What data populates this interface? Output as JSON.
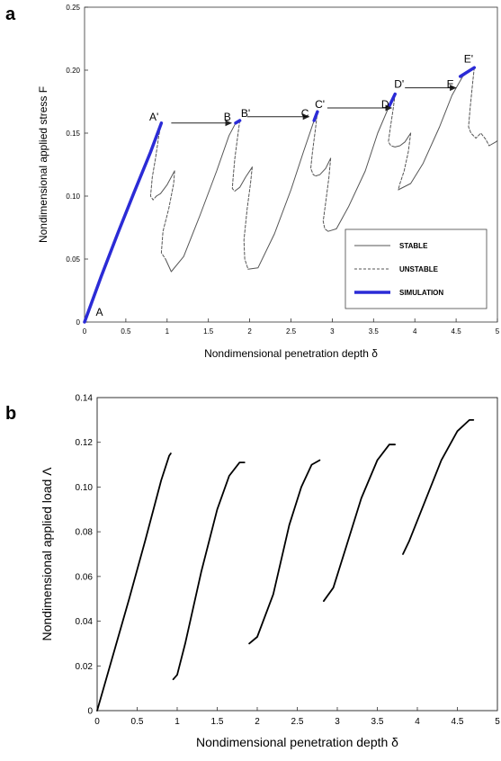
{
  "chart_data": [
    {
      "panel": "a",
      "type": "line",
      "xlabel": "Nondimensional penetration depth δ",
      "ylabel": "Nondimensional applied stress F",
      "xlim": [
        0,
        5
      ],
      "ylim": [
        0,
        0.25
      ],
      "xticks": [
        "0",
        "0.5",
        "1",
        "1.5",
        "2",
        "2.5",
        "3",
        "3.5",
        "4",
        "4.5",
        "5"
      ],
      "yticks": [
        "0",
        "0.05",
        "0.10",
        "0.15",
        "0.20",
        "0.25"
      ],
      "grid": false,
      "legend": {
        "position": "bottom-right",
        "entries": [
          {
            "label": "STABLE",
            "style": "solid",
            "color": "#555555"
          },
          {
            "label": "UNSTABLE",
            "style": "dashed",
            "color": "#555555"
          },
          {
            "label": "SIMULATION",
            "style": "thick",
            "color": "#2b2bd6"
          }
        ]
      },
      "series": [
        {
          "name": "STABLE",
          "style": "stable",
          "segments": [
            [
              [
                0.0,
                0.0
              ],
              [
                0.2,
                0.036
              ],
              [
                0.4,
                0.07
              ],
              [
                0.6,
                0.103
              ],
              [
                0.8,
                0.135
              ],
              [
                0.93,
                0.158
              ]
            ],
            [
              [
                1.09,
                0.12
              ],
              [
                1.0,
                0.109
              ],
              [
                0.92,
                0.102
              ],
              [
                0.87,
                0.1
              ]
            ],
            [
              [
                0.98,
                0.05
              ],
              [
                1.05,
                0.04
              ],
              [
                1.2,
                0.052
              ],
              [
                1.4,
                0.085
              ],
              [
                1.6,
                0.12
              ],
              [
                1.75,
                0.148
              ],
              [
                1.83,
                0.158
              ],
              [
                1.88,
                0.16
              ]
            ],
            [
              [
                2.03,
                0.123
              ],
              [
                1.95,
                0.115
              ],
              [
                1.88,
                0.107
              ],
              [
                1.82,
                0.104
              ]
            ],
            [
              [
                1.98,
                0.042
              ],
              [
                2.1,
                0.043
              ],
              [
                2.3,
                0.07
              ],
              [
                2.5,
                0.105
              ],
              [
                2.65,
                0.135
              ],
              [
                2.78,
                0.16
              ],
              [
                2.82,
                0.167
              ]
            ],
            [
              [
                2.98,
                0.13
              ],
              [
                2.92,
                0.122
              ],
              [
                2.85,
                0.117
              ],
              [
                2.8,
                0.116
              ]
            ],
            [
              [
                2.95,
                0.072
              ],
              [
                3.05,
                0.074
              ],
              [
                3.2,
                0.092
              ],
              [
                3.4,
                0.12
              ],
              [
                3.55,
                0.15
              ],
              [
                3.68,
                0.17
              ],
              [
                3.76,
                0.181
              ]
            ],
            [
              [
                3.95,
                0.15
              ],
              [
                3.88,
                0.143
              ],
              [
                3.82,
                0.14
              ],
              [
                3.76,
                0.139
              ]
            ],
            [
              [
                3.8,
                0.105
              ],
              [
                3.95,
                0.11
              ],
              [
                4.1,
                0.126
              ],
              [
                4.3,
                0.155
              ],
              [
                4.45,
                0.18
              ],
              [
                4.58,
                0.195
              ],
              [
                4.72,
                0.202
              ]
            ],
            [
              [
                4.9,
                0.14
              ],
              [
                4.98,
                0.143
              ],
              [
                5.0,
                0.144
              ]
            ]
          ]
        },
        {
          "name": "UNSTABLE",
          "style": "unstable",
          "segments": [
            [
              [
                0.93,
                0.158
              ],
              [
                0.9,
                0.148
              ],
              [
                0.86,
                0.13
              ],
              [
                0.82,
                0.115
              ],
              [
                0.8,
                0.1
              ],
              [
                0.83,
                0.097
              ],
              [
                0.87,
                0.1
              ]
            ],
            [
              [
                1.09,
                0.12
              ],
              [
                1.08,
                0.11
              ],
              [
                1.02,
                0.09
              ],
              [
                0.95,
                0.072
              ],
              [
                0.93,
                0.055
              ],
              [
                0.98,
                0.05
              ]
            ],
            [
              [
                1.88,
                0.16
              ],
              [
                1.86,
                0.15
              ],
              [
                1.82,
                0.13
              ],
              [
                1.8,
                0.115
              ],
              [
                1.79,
                0.106
              ],
              [
                1.82,
                0.104
              ]
            ],
            [
              [
                2.03,
                0.123
              ],
              [
                2.01,
                0.11
              ],
              [
                1.97,
                0.09
              ],
              [
                1.93,
                0.065
              ],
              [
                1.94,
                0.05
              ],
              [
                1.98,
                0.042
              ]
            ],
            [
              [
                2.82,
                0.167
              ],
              [
                2.8,
                0.155
              ],
              [
                2.76,
                0.135
              ],
              [
                2.74,
                0.122
              ],
              [
                2.77,
                0.117
              ],
              [
                2.8,
                0.116
              ]
            ],
            [
              [
                2.98,
                0.13
              ],
              [
                2.96,
                0.115
              ],
              [
                2.92,
                0.095
              ],
              [
                2.89,
                0.08
              ],
              [
                2.91,
                0.074
              ],
              [
                2.95,
                0.072
              ]
            ],
            [
              [
                3.76,
                0.181
              ],
              [
                3.74,
                0.17
              ],
              [
                3.7,
                0.153
              ],
              [
                3.68,
                0.143
              ],
              [
                3.71,
                0.14
              ],
              [
                3.76,
                0.139
              ]
            ],
            [
              [
                3.95,
                0.15
              ],
              [
                3.92,
                0.135
              ],
              [
                3.87,
                0.12
              ],
              [
                3.82,
                0.11
              ],
              [
                3.8,
                0.105
              ]
            ],
            [
              [
                4.72,
                0.202
              ],
              [
                4.7,
                0.19
              ],
              [
                4.67,
                0.17
              ],
              [
                4.65,
                0.155
              ],
              [
                4.68,
                0.15
              ],
              [
                4.74,
                0.146
              ],
              [
                4.8,
                0.15
              ],
              [
                4.86,
                0.145
              ],
              [
                4.9,
                0.14
              ]
            ]
          ]
        },
        {
          "name": "SIMULATION",
          "style": "simulation",
          "segments": [
            [
              [
                0.0,
                0.0
              ],
              [
                0.2,
                0.036
              ],
              [
                0.4,
                0.07
              ],
              [
                0.6,
                0.103
              ],
              [
                0.8,
                0.135
              ],
              [
                0.93,
                0.158
              ]
            ],
            [
              [
                1.83,
                0.158
              ],
              [
                1.88,
                0.16
              ]
            ],
            [
              [
                2.78,
                0.16
              ],
              [
                2.82,
                0.167
              ]
            ],
            [
              [
                3.68,
                0.17
              ],
              [
                3.76,
                0.181
              ]
            ],
            [
              [
                4.55,
                0.195
              ],
              [
                4.72,
                0.202
              ]
            ]
          ]
        }
      ],
      "arrows": [
        {
          "from": [
            1.05,
            0.158
          ],
          "to": [
            1.78,
            0.158
          ]
        },
        {
          "from": [
            1.97,
            0.163
          ],
          "to": [
            2.72,
            0.163
          ]
        },
        {
          "from": [
            2.94,
            0.17
          ],
          "to": [
            3.72,
            0.17
          ]
        },
        {
          "from": [
            3.88,
            0.186
          ],
          "to": [
            4.5,
            0.186
          ]
        }
      ],
      "annotations": [
        {
          "text": "A",
          "x": 0.18,
          "y": 0.005
        },
        {
          "text": "A'",
          "x": 0.84,
          "y": 0.16
        },
        {
          "text": "B",
          "x": 1.73,
          "y": 0.16
        },
        {
          "text": "B'",
          "x": 1.95,
          "y": 0.163
        },
        {
          "text": "C",
          "x": 2.67,
          "y": 0.163
        },
        {
          "text": "C'",
          "x": 2.85,
          "y": 0.17
        },
        {
          "text": "D",
          "x": 3.64,
          "y": 0.17
        },
        {
          "text": "D'",
          "x": 3.81,
          "y": 0.186
        },
        {
          "text": "E",
          "x": 4.43,
          "y": 0.186
        },
        {
          "text": "E'",
          "x": 4.65,
          "y": 0.206
        }
      ]
    },
    {
      "panel": "b",
      "type": "line",
      "xlabel": "Nondimensional penetration depth δ",
      "ylabel": "Nondimensional applied load  Λ",
      "xlim": [
        0,
        5
      ],
      "ylim": [
        0,
        0.14
      ],
      "xticks": [
        "0",
        "0.5",
        "1",
        "1.5",
        "2",
        "2.5",
        "3",
        "3.5",
        "4",
        "4.5",
        "5"
      ],
      "yticks": [
        "0",
        "0.02",
        "0.04",
        "0.06",
        "0.08",
        "0.10",
        "0.12",
        "0.14"
      ],
      "grid": false,
      "series": [
        {
          "name": "",
          "segments": [
            [
              [
                0.0,
                0.0
              ],
              [
                0.2,
                0.025
              ],
              [
                0.4,
                0.05
              ],
              [
                0.6,
                0.076
              ],
              [
                0.8,
                0.103
              ],
              [
                0.9,
                0.114
              ],
              [
                0.92,
                0.115
              ]
            ],
            [
              [
                0.95,
                0.014
              ],
              [
                1.0,
                0.016
              ],
              [
                1.1,
                0.03
              ],
              [
                1.3,
                0.062
              ],
              [
                1.5,
                0.09
              ],
              [
                1.65,
                0.105
              ],
              [
                1.78,
                0.111
              ],
              [
                1.84,
                0.111
              ]
            ],
            [
              [
                1.9,
                0.03
              ],
              [
                2.0,
                0.033
              ],
              [
                2.2,
                0.052
              ],
              [
                2.4,
                0.083
              ],
              [
                2.55,
                0.1
              ],
              [
                2.68,
                0.11
              ],
              [
                2.78,
                0.112
              ]
            ],
            [
              [
                2.83,
                0.049
              ],
              [
                2.95,
                0.055
              ],
              [
                3.1,
                0.072
              ],
              [
                3.3,
                0.095
              ],
              [
                3.5,
                0.112
              ],
              [
                3.65,
                0.119
              ],
              [
                3.72,
                0.119
              ]
            ],
            [
              [
                3.82,
                0.07
              ],
              [
                3.9,
                0.076
              ],
              [
                4.1,
                0.094
              ],
              [
                4.3,
                0.112
              ],
              [
                4.5,
                0.125
              ],
              [
                4.65,
                0.13
              ],
              [
                4.7,
                0.13
              ]
            ]
          ]
        }
      ]
    }
  ],
  "panels": {
    "a": {
      "letter": "a"
    },
    "b": {
      "letter": "b"
    }
  }
}
